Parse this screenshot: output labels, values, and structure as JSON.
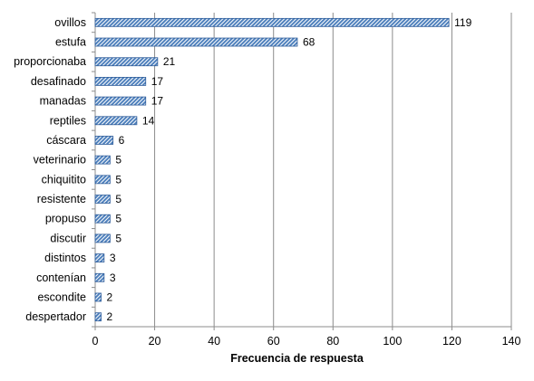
{
  "chart_data": {
    "type": "bar",
    "orientation": "horizontal",
    "categories": [
      "ovillos",
      "estufa",
      "proporcionaba",
      "desafinado",
      "manadas",
      "reptiles",
      "cáscara",
      "veterinario",
      "chiquitito",
      "resistente",
      "propuso",
      "discutir",
      "distintos",
      "contenían",
      "escondite",
      "despertador"
    ],
    "values": [
      119,
      68,
      21,
      17,
      17,
      14,
      6,
      5,
      5,
      5,
      5,
      5,
      3,
      3,
      2,
      2
    ],
    "title": "",
    "xlabel": "Frecuencia de respuesta",
    "ylabel": "",
    "xlim": [
      0,
      140
    ],
    "xticks": [
      0,
      20,
      40,
      60,
      80,
      100,
      120,
      140
    ],
    "grid": "vertical",
    "legend": "none",
    "bar_color": "#4F81BD",
    "bar_edge_color": "#2F5D9A"
  }
}
